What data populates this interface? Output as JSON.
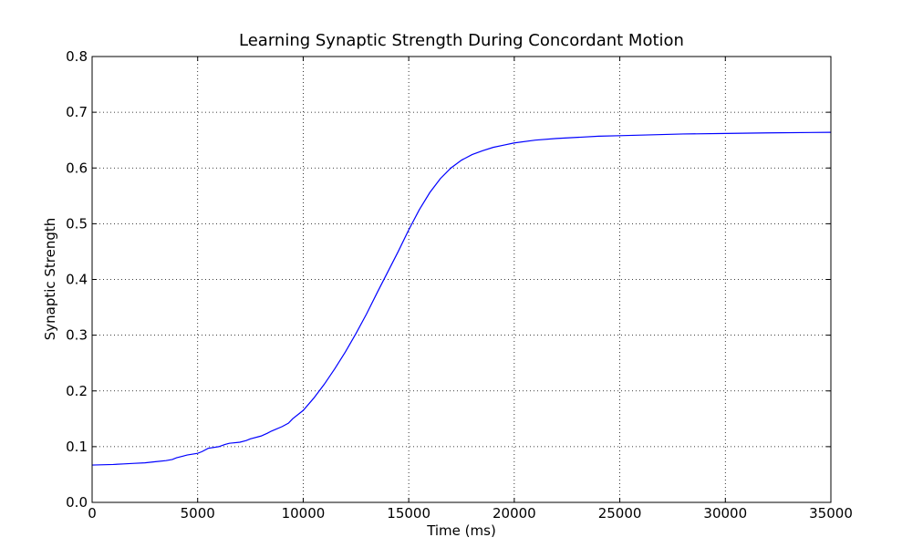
{
  "chart_data": {
    "type": "line",
    "title": "Learning Synaptic Strength During Concordant Motion",
    "xlabel": "Time (ms)",
    "ylabel": "Synaptic Strength",
    "xlim": [
      0,
      35000
    ],
    "ylim": [
      0,
      0.8
    ],
    "xticks": [
      0,
      5000,
      10000,
      15000,
      20000,
      25000,
      30000,
      35000
    ],
    "yticks": [
      0.0,
      0.1,
      0.2,
      0.3,
      0.4,
      0.5,
      0.6,
      0.7,
      0.8
    ],
    "xtick_labels": [
      "0",
      "5000",
      "10000",
      "15000",
      "20000",
      "25000",
      "30000",
      "35000"
    ],
    "ytick_labels": [
      "0.0",
      "0.1",
      "0.2",
      "0.3",
      "0.4",
      "0.5",
      "0.6",
      "0.7",
      "0.8"
    ],
    "grid": true,
    "series": [
      {
        "color": "#0000ff",
        "x": [
          0,
          1000,
          1500,
          2000,
          2500,
          3000,
          3500,
          3800,
          4000,
          4300,
          4500,
          5000,
          5200,
          5500,
          6000,
          6300,
          6500,
          7000,
          7300,
          7500,
          8000,
          8300,
          8500,
          9000,
          9300,
          9500,
          10000,
          10500,
          11000,
          11500,
          12000,
          12500,
          13000,
          13500,
          14000,
          14500,
          15000,
          15500,
          16000,
          16500,
          17000,
          17500,
          18000,
          18500,
          19000,
          19500,
          20000,
          21000,
          22000,
          23000,
          24000,
          25000,
          26000,
          28000,
          30000,
          32000,
          35000
        ],
        "y": [
          0.067,
          0.068,
          0.069,
          0.07,
          0.071,
          0.073,
          0.075,
          0.077,
          0.08,
          0.083,
          0.085,
          0.088,
          0.091,
          0.097,
          0.1,
          0.104,
          0.106,
          0.108,
          0.111,
          0.114,
          0.119,
          0.124,
          0.128,
          0.136,
          0.142,
          0.15,
          0.165,
          0.187,
          0.212,
          0.24,
          0.27,
          0.303,
          0.338,
          0.376,
          0.413,
          0.45,
          0.489,
          0.525,
          0.556,
          0.581,
          0.6,
          0.614,
          0.624,
          0.631,
          0.637,
          0.641,
          0.645,
          0.65,
          0.653,
          0.655,
          0.657,
          0.658,
          0.659,
          0.661,
          0.662,
          0.663,
          0.664
        ]
      }
    ]
  }
}
